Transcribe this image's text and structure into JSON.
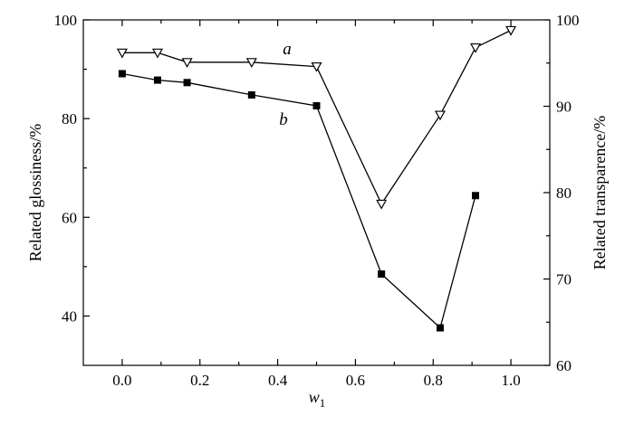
{
  "chart_data": {
    "type": "line",
    "xlabel": "w",
    "xlabel_sub": "1",
    "ylabel": "Related glossiness/%",
    "y2label": "Related transparence/%",
    "xlim": [
      -0.1,
      1.1
    ],
    "ylim": [
      30,
      100
    ],
    "y2lim": [
      60,
      100
    ],
    "xticks": [
      0.0,
      0.2,
      0.4,
      0.6,
      0.8,
      1.0
    ],
    "xtick_labels": [
      "0.0",
      "0.2",
      "0.4",
      "0.6",
      "0.8",
      "1.0"
    ],
    "yticks": [
      40,
      60,
      80,
      100
    ],
    "ytick_labels": [
      "40",
      "60",
      "80",
      "100"
    ],
    "y2ticks": [
      60,
      70,
      80,
      90,
      100
    ],
    "y2tick_labels": [
      "60",
      "70",
      "80",
      "90",
      "100"
    ],
    "grid": false,
    "series": [
      {
        "name": "a",
        "axis": "right",
        "marker": "triangle-down-open",
        "x": [
          0.0,
          0.091,
          0.167,
          0.333,
          0.5,
          0.667,
          0.818,
          0.909,
          1.0
        ],
        "y": [
          96.2,
          96.2,
          95.1,
          95.1,
          94.6,
          78.7,
          89.0,
          96.8,
          98.8
        ]
      },
      {
        "name": "b",
        "axis": "left",
        "marker": "square-filled",
        "x": [
          0.0,
          0.091,
          0.167,
          0.333,
          0.5,
          0.667,
          0.818,
          0.909
        ],
        "y": [
          89.1,
          87.8,
          87.3,
          84.8,
          82.6,
          48.5,
          37.6,
          64.4
        ]
      }
    ],
    "annotations": [
      {
        "text": "a",
        "x": 0.41,
        "y_right": 97.2
      },
      {
        "text": "b",
        "x": 0.41,
        "y_left": 79.5
      }
    ]
  }
}
